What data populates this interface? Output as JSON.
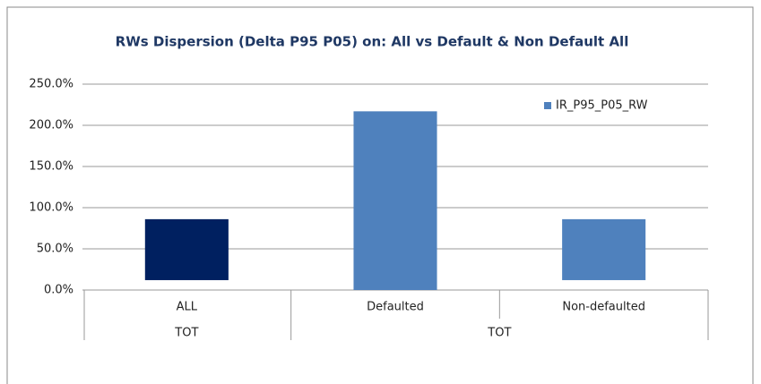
{
  "chart_data": {
    "type": "bar",
    "title": "RWs Dispersion (Delta P95 P05) on: All vs Default & Non Default All",
    "categories": [
      "ALL",
      "Defaulted",
      "Non-defaulted"
    ],
    "groups": [
      {
        "label": "TOT",
        "count": 1
      },
      {
        "label": "TOT",
        "count": 2
      }
    ],
    "series": [
      {
        "name": "IR_P95_P05_RW",
        "color": "#4f81bd",
        "point_colors": [
          "#002060",
          "#4f81bd",
          "#4f81bd"
        ],
        "values": [
          86,
          217,
          86
        ],
        "base": [
          12,
          0,
          12
        ]
      }
    ],
    "ylim": [
      0,
      250
    ],
    "yticks": [
      {
        "value": 0,
        "label": "0.0%"
      },
      {
        "value": 50,
        "label": "50.0%"
      },
      {
        "value": 100,
        "label": "100.0%"
      },
      {
        "value": 150,
        "label": "150.0%"
      },
      {
        "value": 200,
        "label": "200.0%"
      },
      {
        "value": 250,
        "label": "250.0%"
      }
    ],
    "grid": true,
    "legend": "top-right"
  }
}
